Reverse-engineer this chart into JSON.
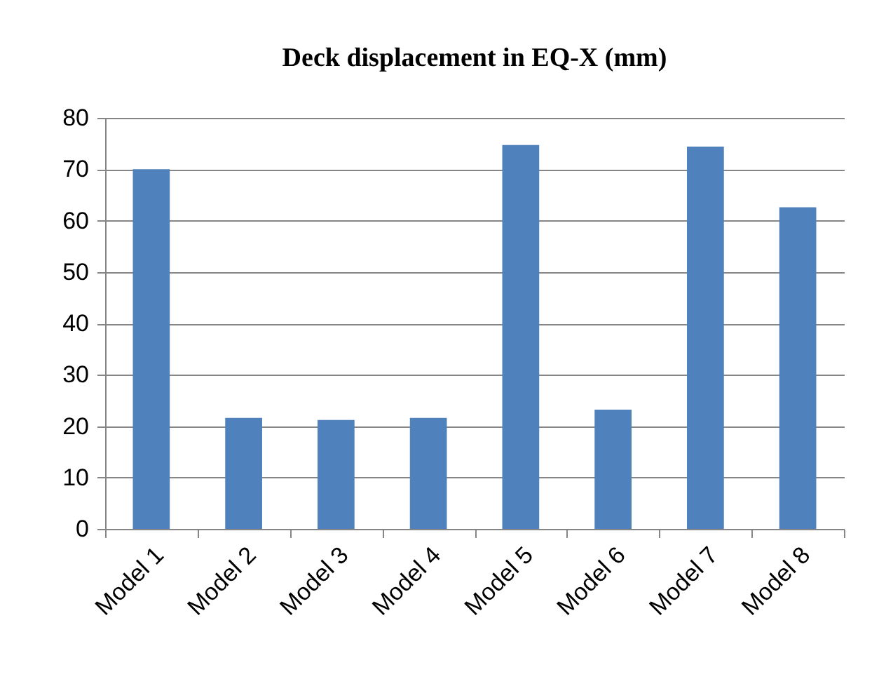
{
  "chart_data": {
    "type": "bar",
    "title": "Deck displacement in  EQ-X (mm)",
    "categories": [
      "Model 1",
      "Model 2",
      "Model 3",
      "Model 4",
      "Model 5",
      "Model 6",
      "Model 7",
      "Model 8"
    ],
    "values": [
      70,
      21.6,
      21.2,
      21.6,
      74.7,
      23.2,
      74.4,
      62.6
    ],
    "color": "#4f81bd",
    "ylim": [
      0,
      80
    ],
    "yticks": [
      0,
      10,
      20,
      30,
      40,
      50,
      60,
      70,
      80
    ],
    "grid": "y",
    "legend": false
  }
}
